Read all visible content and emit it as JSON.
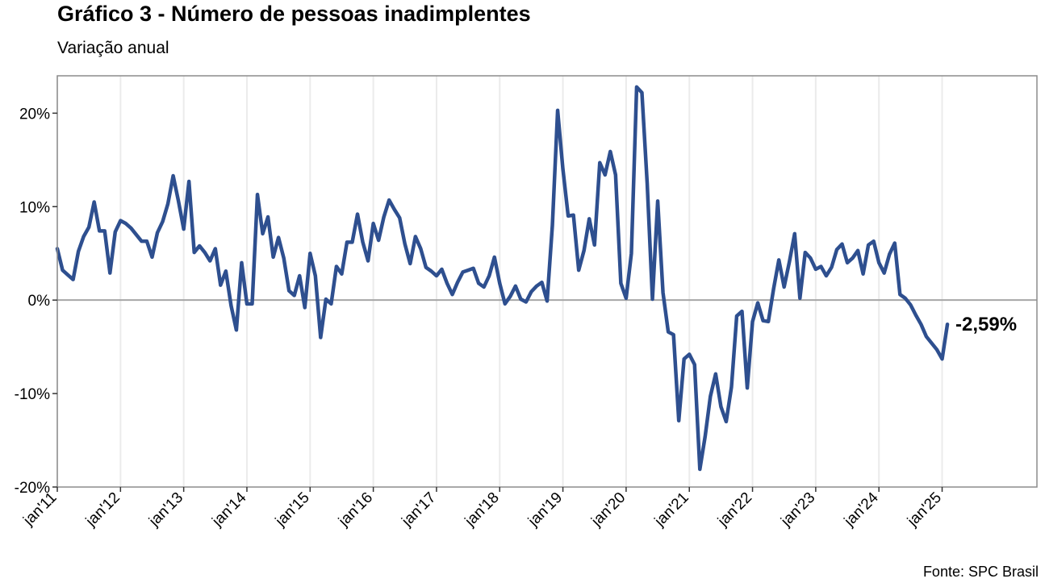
{
  "chart_data": {
    "type": "line",
    "title": "Gráfico 3 - Número de pessoas inadimplentes",
    "subtitle": "Variação anual",
    "source": "Fonte: SPC Brasil",
    "xlabel": "",
    "ylabel": "",
    "x_start": "2011-01",
    "frequency": "monthly",
    "x_range": [
      "2011-01",
      "2026-07"
    ],
    "ylim": [
      -20,
      24
    ],
    "y_ticks": [
      -20,
      -10,
      0,
      10,
      20
    ],
    "y_tick_labels": [
      "-20%",
      "-10%",
      "0%",
      "10%",
      "20%"
    ],
    "x_ticks": [
      "2011-01",
      "2012-01",
      "2013-01",
      "2014-01",
      "2015-01",
      "2016-01",
      "2017-01",
      "2018-01",
      "2019-01",
      "2020-01",
      "2021-01",
      "2022-01",
      "2023-01",
      "2024-01",
      "2025-01"
    ],
    "x_tick_labels": [
      "jan'11",
      "jan'12",
      "jan'13",
      "jan'14",
      "jan'15",
      "jan'16",
      "jan'17",
      "jan'18",
      "jan'19",
      "jan'20",
      "jan'21",
      "jan'22",
      "jan'23",
      "jan'24",
      "jan'25"
    ],
    "grid": "vertical",
    "zero_line": true,
    "line_color": "#2E4F8F",
    "end_label": "-2,59%",
    "series": [
      {
        "values": [
          5.5,
          3.2,
          2.7,
          2.2,
          5.2,
          6.8,
          7.8,
          10.5,
          7.4,
          7.4,
          2.9,
          7.3,
          8.5,
          8.2,
          7.7,
          7.0,
          6.3,
          6.3,
          4.6,
          7.2,
          8.4,
          10.3,
          13.3,
          10.6,
          7.6,
          12.7,
          5.1,
          5.8,
          5.1,
          4.2,
          5.5,
          1.6,
          3.1,
          -0.6,
          -3.2,
          4.0,
          -0.4,
          -0.4,
          11.3,
          7.1,
          8.9,
          4.6,
          6.7,
          4.5,
          1.0,
          0.5,
          2.6,
          -0.8,
          5.0,
          2.6,
          -4.0,
          0.1,
          -0.4,
          3.6,
          2.8,
          6.2,
          6.2,
          9.2,
          6.2,
          4.2,
          8.2,
          6.4,
          8.9,
          10.7,
          9.7,
          8.8,
          6.0,
          3.9,
          6.8,
          5.5,
          3.5,
          3.1,
          2.6,
          3.3,
          1.8,
          0.6,
          1.9,
          3.0,
          3.2,
          3.4,
          1.8,
          1.4,
          2.6,
          4.6,
          1.8,
          -0.4,
          0.4,
          1.5,
          0.1,
          -0.2,
          0.9,
          1.5,
          1.9,
          -0.1,
          8.0,
          20.3,
          14.0,
          9.0,
          9.1,
          3.2,
          5.3,
          8.7,
          5.9,
          14.7,
          13.4,
          15.9,
          13.4,
          1.8,
          0.2,
          5.0,
          22.8,
          22.2,
          12.5,
          0.1,
          10.6,
          0.8,
          -3.4,
          -3.7,
          -12.9,
          -6.3,
          -5.8,
          -6.9,
          -18.1,
          -14.6,
          -10.3,
          -7.9,
          -11.4,
          -13.0,
          -9.3,
          -1.7,
          -1.2,
          -9.4,
          -2.3,
          -0.3,
          -2.2,
          -2.3,
          1.2,
          4.3,
          1.4,
          4.1,
          7.1,
          0.2,
          5.1,
          4.5,
          3.3,
          3.6,
          2.6,
          3.5,
          5.4,
          6.0,
          4.0,
          4.5,
          5.3,
          2.8,
          5.9,
          6.3,
          4.0,
          2.9,
          4.9,
          6.1,
          0.6,
          0.2,
          -0.5,
          -1.6,
          -2.6,
          -3.9,
          -4.6,
          -5.3,
          -6.3,
          -2.59
        ]
      }
    ]
  }
}
